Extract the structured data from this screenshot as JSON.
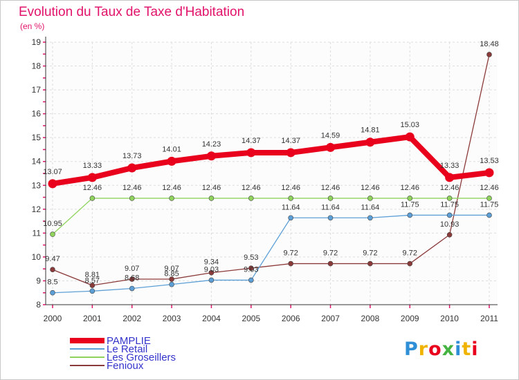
{
  "chart_data": {
    "type": "line",
    "title": "Evolution du Taux de Taxe d'Habitation",
    "unit": "(en %)",
    "x": [
      "2000",
      "2001",
      "2002",
      "2003",
      "2004",
      "2005",
      "2006",
      "2007",
      "2008",
      "2009",
      "2010",
      "2011"
    ],
    "ylim": [
      8,
      19
    ],
    "yticks": [
      "8",
      "9",
      "10",
      "11",
      "12",
      "13",
      "14",
      "15",
      "16",
      "17",
      "18",
      "19"
    ],
    "grid": true,
    "legend_position": "bottom-left",
    "series": [
      {
        "name": "PAMPLIE",
        "color": "#e8001c",
        "values": [
          13.07,
          13.33,
          13.73,
          14.01,
          14.23,
          14.37,
          14.37,
          14.59,
          14.81,
          15.03,
          13.33,
          13.53
        ],
        "labels": [
          "13.07",
          "13.33",
          "13.73",
          "14.01",
          "14.23",
          "14.37",
          "14.37",
          "14.59",
          "14.81",
          "15.03",
          "13.33",
          "13.53"
        ]
      },
      {
        "name": "Le Retail",
        "color": "#5c9fd6",
        "values": [
          8.5,
          8.57,
          8.68,
          8.85,
          9.03,
          9.03,
          11.64,
          11.64,
          11.64,
          11.75,
          11.75,
          11.75
        ],
        "labels": [
          "8.5",
          "8.57",
          "8.68",
          "8.85",
          "9.03",
          "9.03",
          "11.64",
          "11.64",
          "11.64",
          "11.75",
          "11.75",
          "11.75"
        ]
      },
      {
        "name": "Les Groseillers",
        "color": "#8fd35c",
        "values": [
          10.95,
          12.46,
          12.46,
          12.46,
          12.46,
          12.46,
          12.46,
          12.46,
          12.46,
          12.46,
          12.46,
          12.46
        ],
        "labels": [
          "10.95",
          "12.46",
          "12.46",
          "12.46",
          "12.46",
          "12.46",
          "12.46",
          "12.46",
          "12.46",
          "12.46",
          "12.46",
          "12.46"
        ]
      },
      {
        "name": "Fenioux",
        "color": "#8b3a3a",
        "values": [
          9.47,
          8.81,
          9.07,
          9.07,
          9.34,
          9.53,
          9.72,
          9.72,
          9.72,
          9.72,
          10.93,
          18.48
        ],
        "labels": [
          "9.47",
          "8.81",
          "9.07",
          "9.07",
          "9.34",
          "9.53",
          "9.72",
          "9.72",
          "9.72",
          "9.72",
          "10.93",
          "18.48"
        ]
      }
    ]
  },
  "logo": {
    "letters": [
      "P",
      "r",
      "o",
      "x",
      "i",
      "t",
      "i"
    ],
    "colors": [
      "#2e8fd6",
      "#f0b400",
      "#e8001c",
      "#45b342",
      "#2e8fd6",
      "#f0b400",
      "#e8001c"
    ]
  }
}
